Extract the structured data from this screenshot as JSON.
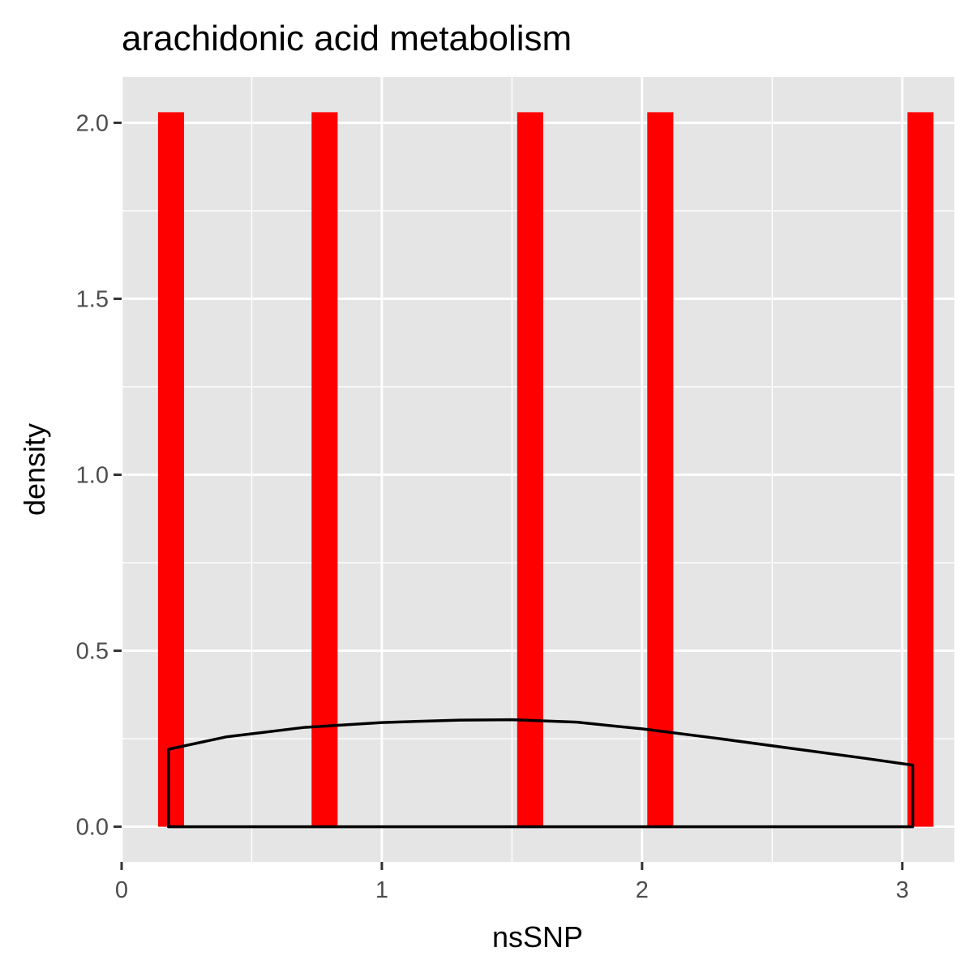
{
  "chart_data": {
    "type": "bar",
    "title": "arachidonic acid metabolism",
    "xlabel": "nsSNP",
    "ylabel": "density",
    "xlim": [
      0,
      3.2
    ],
    "ylim": [
      -0.1,
      2.13
    ],
    "x_ticks": [
      0,
      1,
      2,
      3
    ],
    "x_tick_labels": [
      "0",
      "1",
      "2",
      "3"
    ],
    "y_ticks": [
      0,
      0.5,
      1,
      1.5,
      2
    ],
    "y_tick_labels": [
      "0.0",
      "0.5",
      "1.0",
      "1.5",
      "2.0"
    ],
    "grid": true,
    "legend": "none",
    "bars": {
      "fill": "#ff0000",
      "width": 0.1,
      "centers": [
        0.19,
        0.78,
        1.57,
        2.07,
        3.07
      ],
      "values": [
        2.03,
        2.03,
        2.03,
        2.03,
        2.03
      ]
    },
    "density_curve": {
      "stroke": "#000000",
      "x": [
        0.18,
        0.4,
        0.7,
        1.0,
        1.3,
        1.5,
        1.75,
        2.0,
        2.3,
        2.6,
        2.85,
        3.04
      ],
      "y": [
        0.22,
        0.255,
        0.282,
        0.296,
        0.303,
        0.304,
        0.297,
        0.278,
        0.25,
        0.22,
        0.195,
        0.175
      ]
    },
    "colors": {
      "panel": "#e5e5e5",
      "grid": "#ffffff",
      "tick": "#333333"
    }
  }
}
